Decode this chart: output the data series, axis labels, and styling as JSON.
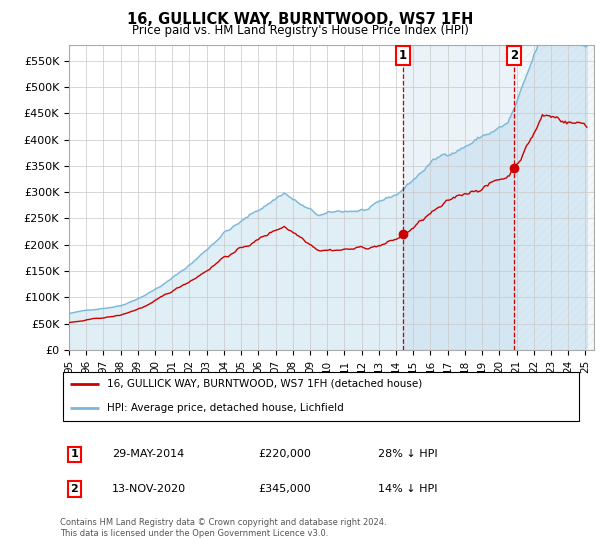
{
  "title": "16, GULLICK WAY, BURNTWOOD, WS7 1FH",
  "subtitle": "Price paid vs. HM Land Registry's House Price Index (HPI)",
  "hpi_color": "#7ab8d9",
  "price_color": "#cc0000",
  "background_color": "#ffffff",
  "grid_color": "#c8c8c8",
  "ylim": [
    0,
    580000
  ],
  "yticks": [
    0,
    50000,
    100000,
    150000,
    200000,
    250000,
    300000,
    350000,
    400000,
    450000,
    500000,
    550000
  ],
  "transaction1_x": 2014.41,
  "transaction1_price": 220000,
  "transaction2_x": 2020.87,
  "transaction2_price": 345000,
  "legend_house_label": "16, GULLICK WAY, BURNTWOOD, WS7 1FH (detached house)",
  "legend_hpi_label": "HPI: Average price, detached house, Lichfield",
  "footnote1": "Contains HM Land Registry data © Crown copyright and database right 2024.",
  "footnote2": "This data is licensed under the Open Government Licence v3.0.",
  "xmin": 1995.0,
  "xmax": 2025.5
}
